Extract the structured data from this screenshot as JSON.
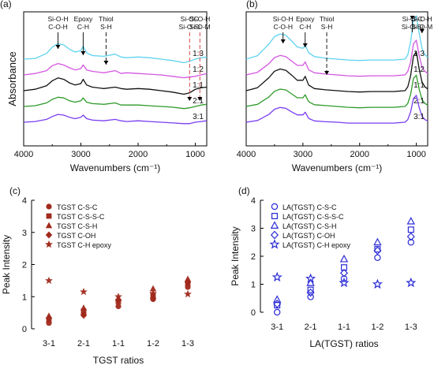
{
  "chart_data": [
    {
      "type": "line",
      "panel_label": "(a)",
      "xlabel": "Wavenumbers (cm⁻¹)",
      "ylabel": "Absorbance",
      "xlim": [
        4000,
        800
      ],
      "xticks": [
        "4000",
        "3000",
        "2000",
        "1000"
      ],
      "grid": false,
      "annotations": [
        {
          "lines": [
            "Si-O-H",
            "C-O-H"
          ],
          "x": 3400
        },
        {
          "lines": [
            "Epoxy",
            "C-H"
          ],
          "x": 2960
        },
        {
          "lines": [
            "Thiol",
            "S-H"
          ],
          "x": 2560
        },
        {
          "lines": [
            "Si-OC",
            "Si-O-Si"
          ],
          "x": 1100
        },
        {
          "lines": [
            "Si-O-H",
            "Si-O-M"
          ],
          "x": 920
        }
      ],
      "series": [
        {
          "name": "1:3",
          "color": "#5fd3f0",
          "offset": 4.0,
          "x": [
            4000,
            3800,
            3600,
            3500,
            3400,
            3300,
            3200,
            3100,
            3000,
            2960,
            2900,
            2800,
            2600,
            2400,
            2300,
            2200,
            2000,
            1800,
            1600,
            1400,
            1200,
            1100,
            1000,
            900,
            800
          ],
          "y": [
            0.0,
            0.01,
            0.08,
            0.17,
            0.22,
            0.2,
            0.14,
            0.1,
            0.12,
            0.18,
            0.09,
            0.05,
            0.04,
            0.07,
            0.03,
            0.02,
            0.03,
            0.02,
            0.0,
            -0.02,
            -0.05,
            -0.03,
            0.0,
            0.02,
            0.03
          ]
        },
        {
          "name": "1:2",
          "color": "#d357e0",
          "offset": 3.0,
          "x": [
            4000,
            3800,
            3600,
            3500,
            3400,
            3300,
            3200,
            3100,
            3000,
            2960,
            2900,
            2800,
            2600,
            2400,
            2300,
            2200,
            2000,
            1800,
            1600,
            1400,
            1200,
            1100,
            1000,
            900,
            800
          ],
          "y": [
            0.0,
            0.02,
            0.06,
            0.13,
            0.16,
            0.14,
            0.1,
            0.07,
            0.09,
            0.14,
            0.07,
            0.05,
            0.03,
            0.06,
            0.02,
            0.03,
            0.02,
            0.01,
            0.0,
            -0.02,
            -0.04,
            -0.03,
            -0.02,
            0.0,
            0.02
          ]
        },
        {
          "name": "1:1",
          "color": "#111111",
          "offset": 2.0,
          "x": [
            4000,
            3800,
            3600,
            3500,
            3400,
            3300,
            3200,
            3100,
            3000,
            2960,
            2900,
            2800,
            2600,
            2400,
            2300,
            2200,
            2000,
            1800,
            1600,
            1400,
            1200,
            1100,
            1000,
            900,
            800
          ],
          "y": [
            0.0,
            0.02,
            0.07,
            0.14,
            0.18,
            0.16,
            0.11,
            0.08,
            0.1,
            0.16,
            0.08,
            0.05,
            0.03,
            0.05,
            0.03,
            0.02,
            0.03,
            0.02,
            0.0,
            -0.02,
            -0.05,
            -0.03,
            0.02,
            0.04,
            0.05
          ]
        },
        {
          "name": "2:1",
          "color": "#2e9a2a",
          "offset": 1.0,
          "x": [
            4000,
            3800,
            3600,
            3500,
            3400,
            3300,
            3200,
            3100,
            3000,
            2960,
            2900,
            2800,
            2600,
            2400,
            2300,
            2200,
            2000,
            1800,
            1600,
            1400,
            1200,
            1100,
            1000,
            900,
            800
          ],
          "y": [
            0.0,
            0.01,
            0.05,
            0.1,
            0.13,
            0.12,
            0.08,
            0.06,
            0.08,
            0.12,
            0.06,
            0.04,
            0.03,
            0.05,
            0.02,
            0.02,
            0.02,
            0.01,
            0.0,
            -0.01,
            -0.03,
            -0.02,
            0.0,
            0.02,
            0.03
          ]
        },
        {
          "name": "3:1",
          "color": "#7a3df0",
          "offset": 0.0,
          "x": [
            4000,
            3800,
            3600,
            3500,
            3400,
            3300,
            3200,
            3100,
            3000,
            2960,
            2900,
            2800,
            2600,
            2400,
            2300,
            2200,
            2000,
            1800,
            1600,
            1400,
            1200,
            1100,
            1000,
            900,
            800
          ],
          "y": [
            0.0,
            0.01,
            0.04,
            0.08,
            0.11,
            0.1,
            0.07,
            0.05,
            0.07,
            0.1,
            0.05,
            0.03,
            0.02,
            0.04,
            0.02,
            0.01,
            0.02,
            0.01,
            0.0,
            -0.01,
            -0.02,
            -0.02,
            0.0,
            0.01,
            0.02
          ]
        }
      ]
    },
    {
      "type": "line",
      "panel_label": "(b)",
      "xlabel": "Wavenumbers (cm⁻¹)",
      "ylabel": "",
      "xlim": [
        4000,
        800
      ],
      "xticks": [
        "4000",
        "3000",
        "2000",
        "1000"
      ],
      "grid": false,
      "annotations": [
        {
          "lines": [
            "Si-O-H",
            "C-O-H"
          ],
          "x": 3350
        },
        {
          "lines": [
            "Epoxy",
            "C-H"
          ],
          "x": 2960
        },
        {
          "lines": [
            "Thiol",
            "S-H"
          ],
          "x": 2580
        },
        {
          "lines": [
            "Si-O-C",
            "Si-O-Si"
          ],
          "x": 1070
        },
        {
          "lines": [
            "Si-O-H",
            "Si-O-M"
          ],
          "x": 900
        }
      ],
      "series": [
        {
          "name": "1:3",
          "color": "#5fd3f0",
          "offset": 4.0,
          "x": [
            4000,
            3800,
            3600,
            3500,
            3400,
            3300,
            3200,
            3100,
            3000,
            2960,
            2900,
            2800,
            2600,
            2400,
            2200,
            2000,
            1800,
            1600,
            1400,
            1200,
            1150,
            1100,
            1050,
            1000,
            950,
            900,
            850,
            800
          ],
          "y": [
            0.0,
            0.08,
            0.35,
            0.52,
            0.58,
            0.55,
            0.42,
            0.28,
            0.25,
            0.32,
            0.15,
            0.06,
            0.02,
            0.0,
            -0.02,
            -0.03,
            -0.02,
            -0.02,
            -0.02,
            0.0,
            0.1,
            0.4,
            0.9,
            1.0,
            0.6,
            0.25,
            0.1,
            0.05
          ]
        },
        {
          "name": "1:2",
          "color": "#d357e0",
          "offset": 3.0,
          "x": [
            4000,
            3800,
            3600,
            3500,
            3400,
            3300,
            3200,
            3100,
            3000,
            2960,
            2900,
            2800,
            2600,
            2400,
            2200,
            2000,
            1800,
            1600,
            1400,
            1200,
            1150,
            1100,
            1050,
            1000,
            950,
            900,
            850,
            800
          ],
          "y": [
            0.0,
            0.06,
            0.26,
            0.4,
            0.45,
            0.42,
            0.32,
            0.22,
            0.22,
            0.3,
            0.12,
            0.05,
            0.02,
            0.0,
            -0.02,
            -0.03,
            -0.02,
            -0.02,
            -0.02,
            0.0,
            0.08,
            0.3,
            0.72,
            0.8,
            0.45,
            0.18,
            0.08,
            0.04
          ]
        },
        {
          "name": "1:1",
          "color": "#111111",
          "offset": 2.0,
          "x": [
            4000,
            3800,
            3600,
            3500,
            3400,
            3300,
            3200,
            3100,
            3000,
            2960,
            2900,
            2800,
            2600,
            2400,
            2200,
            2000,
            1800,
            1600,
            1400,
            1200,
            1150,
            1100,
            1050,
            1000,
            950,
            900,
            850,
            800
          ],
          "y": [
            0.0,
            0.07,
            0.3,
            0.45,
            0.5,
            0.47,
            0.36,
            0.24,
            0.24,
            0.33,
            0.13,
            0.05,
            0.02,
            0.0,
            -0.02,
            -0.03,
            -0.02,
            -0.02,
            -0.02,
            0.0,
            0.09,
            0.35,
            0.8,
            0.9,
            0.5,
            0.2,
            0.09,
            0.04
          ]
        },
        {
          "name": "2:1",
          "color": "#2e9a2a",
          "offset": 1.0,
          "x": [
            4000,
            3800,
            3600,
            3500,
            3400,
            3300,
            3200,
            3100,
            3000,
            2960,
            2900,
            2800,
            2600,
            2400,
            2200,
            2000,
            1800,
            1600,
            1400,
            1200,
            1150,
            1100,
            1050,
            1000,
            950,
            900,
            850,
            800
          ],
          "y": [
            0.0,
            0.05,
            0.22,
            0.35,
            0.4,
            0.38,
            0.29,
            0.2,
            0.2,
            0.27,
            0.11,
            0.04,
            0.02,
            0.0,
            -0.02,
            -0.03,
            -0.02,
            -0.02,
            -0.02,
            0.0,
            0.07,
            0.28,
            0.65,
            0.72,
            0.4,
            0.16,
            0.07,
            0.03
          ]
        },
        {
          "name": "3:1",
          "color": "#7a3df0",
          "offset": 0.0,
          "x": [
            4000,
            3800,
            3600,
            3500,
            3400,
            3300,
            3200,
            3100,
            3000,
            2960,
            2900,
            2800,
            2600,
            2400,
            2200,
            2000,
            1800,
            1600,
            1400,
            1200,
            1150,
            1100,
            1050,
            1000,
            950,
            900,
            850,
            800
          ],
          "y": [
            0.0,
            0.04,
            0.18,
            0.3,
            0.34,
            0.32,
            0.24,
            0.17,
            0.17,
            0.23,
            0.09,
            0.03,
            0.01,
            0.0,
            -0.02,
            -0.02,
            -0.02,
            -0.02,
            -0.02,
            0.0,
            0.06,
            0.24,
            0.55,
            0.62,
            0.34,
            0.14,
            0.06,
            0.03
          ]
        }
      ]
    },
    {
      "type": "scatter",
      "panel_label": "(c)",
      "xlabel": "TGST ratios",
      "ylabel": "Peak Intensity",
      "categories": [
        "3-1",
        "2-1",
        "1-1",
        "1-2",
        "1-3"
      ],
      "ylim": [
        0,
        4
      ],
      "yticks": [
        0,
        1,
        2,
        3,
        4
      ],
      "grid": false,
      "legend_position": "top-left",
      "series": [
        {
          "name": "TGST C-S-C",
          "marker": "circle",
          "color": "#a02a1c",
          "values": [
            0.18,
            0.45,
            0.7,
            0.92,
            1.3
          ]
        },
        {
          "name": "TGST C-S-S-C",
          "marker": "square",
          "color": "#a02a1c",
          "values": [
            0.28,
            0.55,
            0.85,
            1.05,
            1.4
          ]
        },
        {
          "name": "TGST C-S-H",
          "marker": "triangle",
          "color": "#a02a1c",
          "values": [
            0.4,
            0.65,
            0.95,
            1.25,
            1.55
          ]
        },
        {
          "name": "TGST C-OH",
          "marker": "diamond",
          "color": "#a02a1c",
          "values": [
            0.33,
            0.42,
            0.9,
            0.95,
            1.45
          ]
        },
        {
          "name": "TGST C-H epoxy",
          "marker": "star",
          "color": "#a02a1c",
          "values": [
            1.5,
            1.15,
            1.0,
            1.1,
            1.08
          ]
        }
      ]
    },
    {
      "type": "scatter",
      "panel_label": "(d)",
      "xlabel": "LA(TGST) ratios",
      "ylabel": "Peak Intensity",
      "categories": [
        "3-1",
        "2-1",
        "1-1",
        "1-2",
        "1-3"
      ],
      "ylim": [
        0,
        4
      ],
      "yticks": [
        0,
        1,
        2,
        3,
        4
      ],
      "grid": false,
      "legend_position": "top-left",
      "series": [
        {
          "name": "LA(TGST) C-S-C",
          "marker": "circle",
          "color": "#2a2ad6",
          "values": [
            0.0,
            0.55,
            1.2,
            1.95,
            2.5
          ]
        },
        {
          "name": "LA(TGST) C-S-S-C",
          "marker": "square",
          "color": "#2a2ad6",
          "values": [
            0.25,
            0.8,
            1.6,
            2.25,
            2.95
          ]
        },
        {
          "name": "LA(TGST) C-S-H",
          "marker": "triangle",
          "color": "#2a2ad6",
          "values": [
            0.45,
            1.05,
            1.9,
            2.5,
            3.25
          ]
        },
        {
          "name": "LA(TGST) C-OH",
          "marker": "diamond",
          "color": "#2a2ad6",
          "values": [
            0.3,
            0.7,
            1.4,
            2.2,
            2.7
          ]
        },
        {
          "name": "LA(TGST) C-H epoxy",
          "marker": "star",
          "color": "#2a2ad6",
          "values": [
            1.25,
            1.2,
            1.05,
            1.0,
            1.05
          ]
        }
      ]
    }
  ]
}
